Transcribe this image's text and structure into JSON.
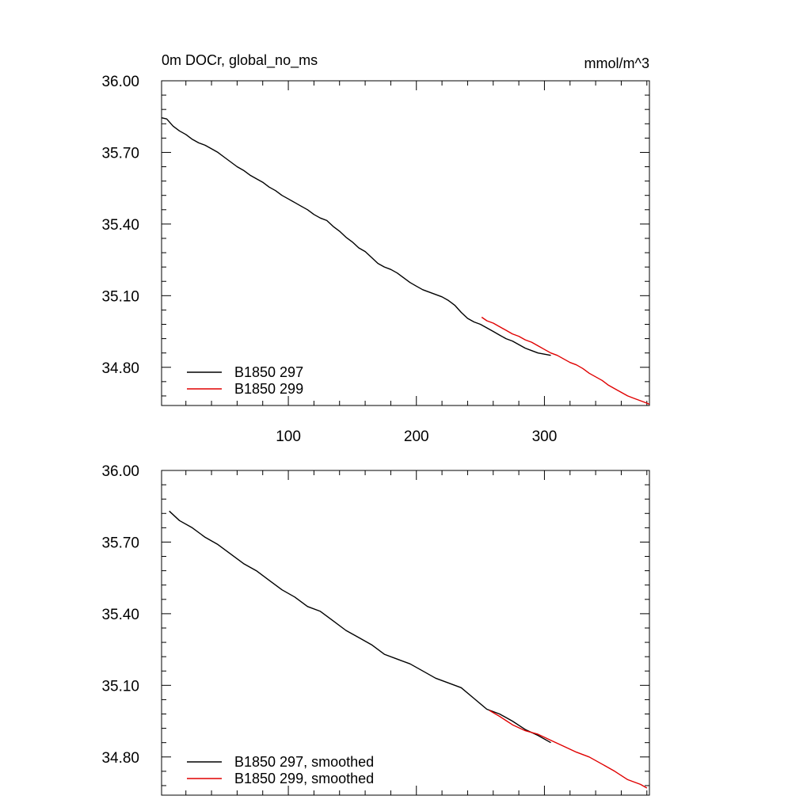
{
  "chart_data": [
    {
      "type": "line",
      "title_left": "0m DOCr, global_no_ms",
      "title_right": "mmol/m^3",
      "xlim": [
        1,
        382
      ],
      "ylim": [
        34.64,
        36.0
      ],
      "xticks": [
        100,
        200,
        300
      ],
      "xtick_labels": [
        "100",
        "200",
        "300"
      ],
      "yticks": [
        34.8,
        35.1,
        35.4,
        35.7,
        36.0
      ],
      "ytick_labels": [
        "34.80",
        "35.10",
        "35.40",
        "35.70",
        "36.00"
      ],
      "legend": {
        "location": "bottom-left"
      },
      "series": [
        {
          "name": "B1850 297",
          "color": "#000000",
          "x": [
            1,
            5,
            10,
            15,
            20,
            25,
            30,
            35,
            40,
            45,
            50,
            55,
            60,
            65,
            70,
            75,
            80,
            85,
            90,
            95,
            100,
            105,
            110,
            115,
            120,
            125,
            130,
            135,
            140,
            145,
            150,
            155,
            160,
            165,
            170,
            175,
            180,
            185,
            190,
            195,
            200,
            205,
            210,
            215,
            220,
            225,
            230,
            235,
            240,
            245,
            250,
            255,
            260,
            265,
            270,
            275,
            280,
            285,
            290,
            295,
            300,
            305
          ],
          "y": [
            35.845,
            35.84,
            35.81,
            35.79,
            35.775,
            35.755,
            35.74,
            35.73,
            35.715,
            35.7,
            35.68,
            35.66,
            35.64,
            35.625,
            35.605,
            35.59,
            35.575,
            35.555,
            35.54,
            35.52,
            35.505,
            35.49,
            35.475,
            35.46,
            35.44,
            35.425,
            35.415,
            35.39,
            35.37,
            35.345,
            35.325,
            35.3,
            35.285,
            35.26,
            35.235,
            35.22,
            35.21,
            35.195,
            35.175,
            35.155,
            35.14,
            35.125,
            35.115,
            35.105,
            35.095,
            35.08,
            35.06,
            35.03,
            35.005,
            34.99,
            34.98,
            34.965,
            34.95,
            34.935,
            34.92,
            34.91,
            34.895,
            34.88,
            34.87,
            34.86,
            34.855,
            34.85
          ]
        },
        {
          "name": "B1850 299",
          "color": "#e00000",
          "x": [
            251,
            255,
            260,
            265,
            270,
            275,
            280,
            285,
            290,
            295,
            300,
            305,
            310,
            315,
            320,
            325,
            330,
            335,
            340,
            345,
            350,
            355,
            360,
            365,
            370,
            375,
            380,
            382
          ],
          "y": [
            35.01,
            34.995,
            34.985,
            34.97,
            34.955,
            34.94,
            34.93,
            34.915,
            34.905,
            34.89,
            34.875,
            34.86,
            34.85,
            34.835,
            34.82,
            34.81,
            34.795,
            34.775,
            34.76,
            34.745,
            34.725,
            34.71,
            34.695,
            34.68,
            34.67,
            34.66,
            34.65,
            34.645
          ]
        }
      ]
    },
    {
      "type": "line",
      "xlim": [
        1,
        382
      ],
      "ylim": [
        34.64,
        36.0
      ],
      "xticks": [
        100,
        200,
        300
      ],
      "yticks": [
        34.8,
        35.1,
        35.4,
        35.7,
        36.0
      ],
      "ytick_labels": [
        "34.80",
        "35.10",
        "35.40",
        "35.70",
        "36.00"
      ],
      "legend": {
        "location": "bottom-left"
      },
      "series": [
        {
          "name": "B1850 297, smoothed",
          "color": "#000000",
          "x": [
            7,
            15,
            25,
            35,
            45,
            55,
            65,
            75,
            85,
            95,
            105,
            115,
            125,
            135,
            145,
            155,
            165,
            175,
            185,
            195,
            205,
            215,
            225,
            235,
            245,
            255,
            265,
            275,
            285,
            295,
            305
          ],
          "y": [
            35.83,
            35.79,
            35.76,
            35.72,
            35.69,
            35.65,
            35.61,
            35.58,
            35.54,
            35.5,
            35.47,
            35.43,
            35.41,
            35.37,
            35.33,
            35.3,
            35.27,
            35.23,
            35.21,
            35.19,
            35.16,
            35.13,
            35.11,
            35.09,
            35.045,
            35.0,
            34.98,
            34.95,
            34.915,
            34.89,
            34.86
          ]
        },
        {
          "name": "B1850 299, smoothed",
          "color": "#e00000",
          "x": [
            257,
            265,
            275,
            285,
            295,
            305,
            315,
            325,
            335,
            345,
            355,
            365,
            375,
            380
          ],
          "y": [
            34.995,
            34.97,
            34.935,
            34.91,
            34.895,
            34.87,
            34.845,
            34.82,
            34.8,
            34.77,
            34.74,
            34.705,
            34.685,
            34.67
          ]
        }
      ]
    }
  ]
}
